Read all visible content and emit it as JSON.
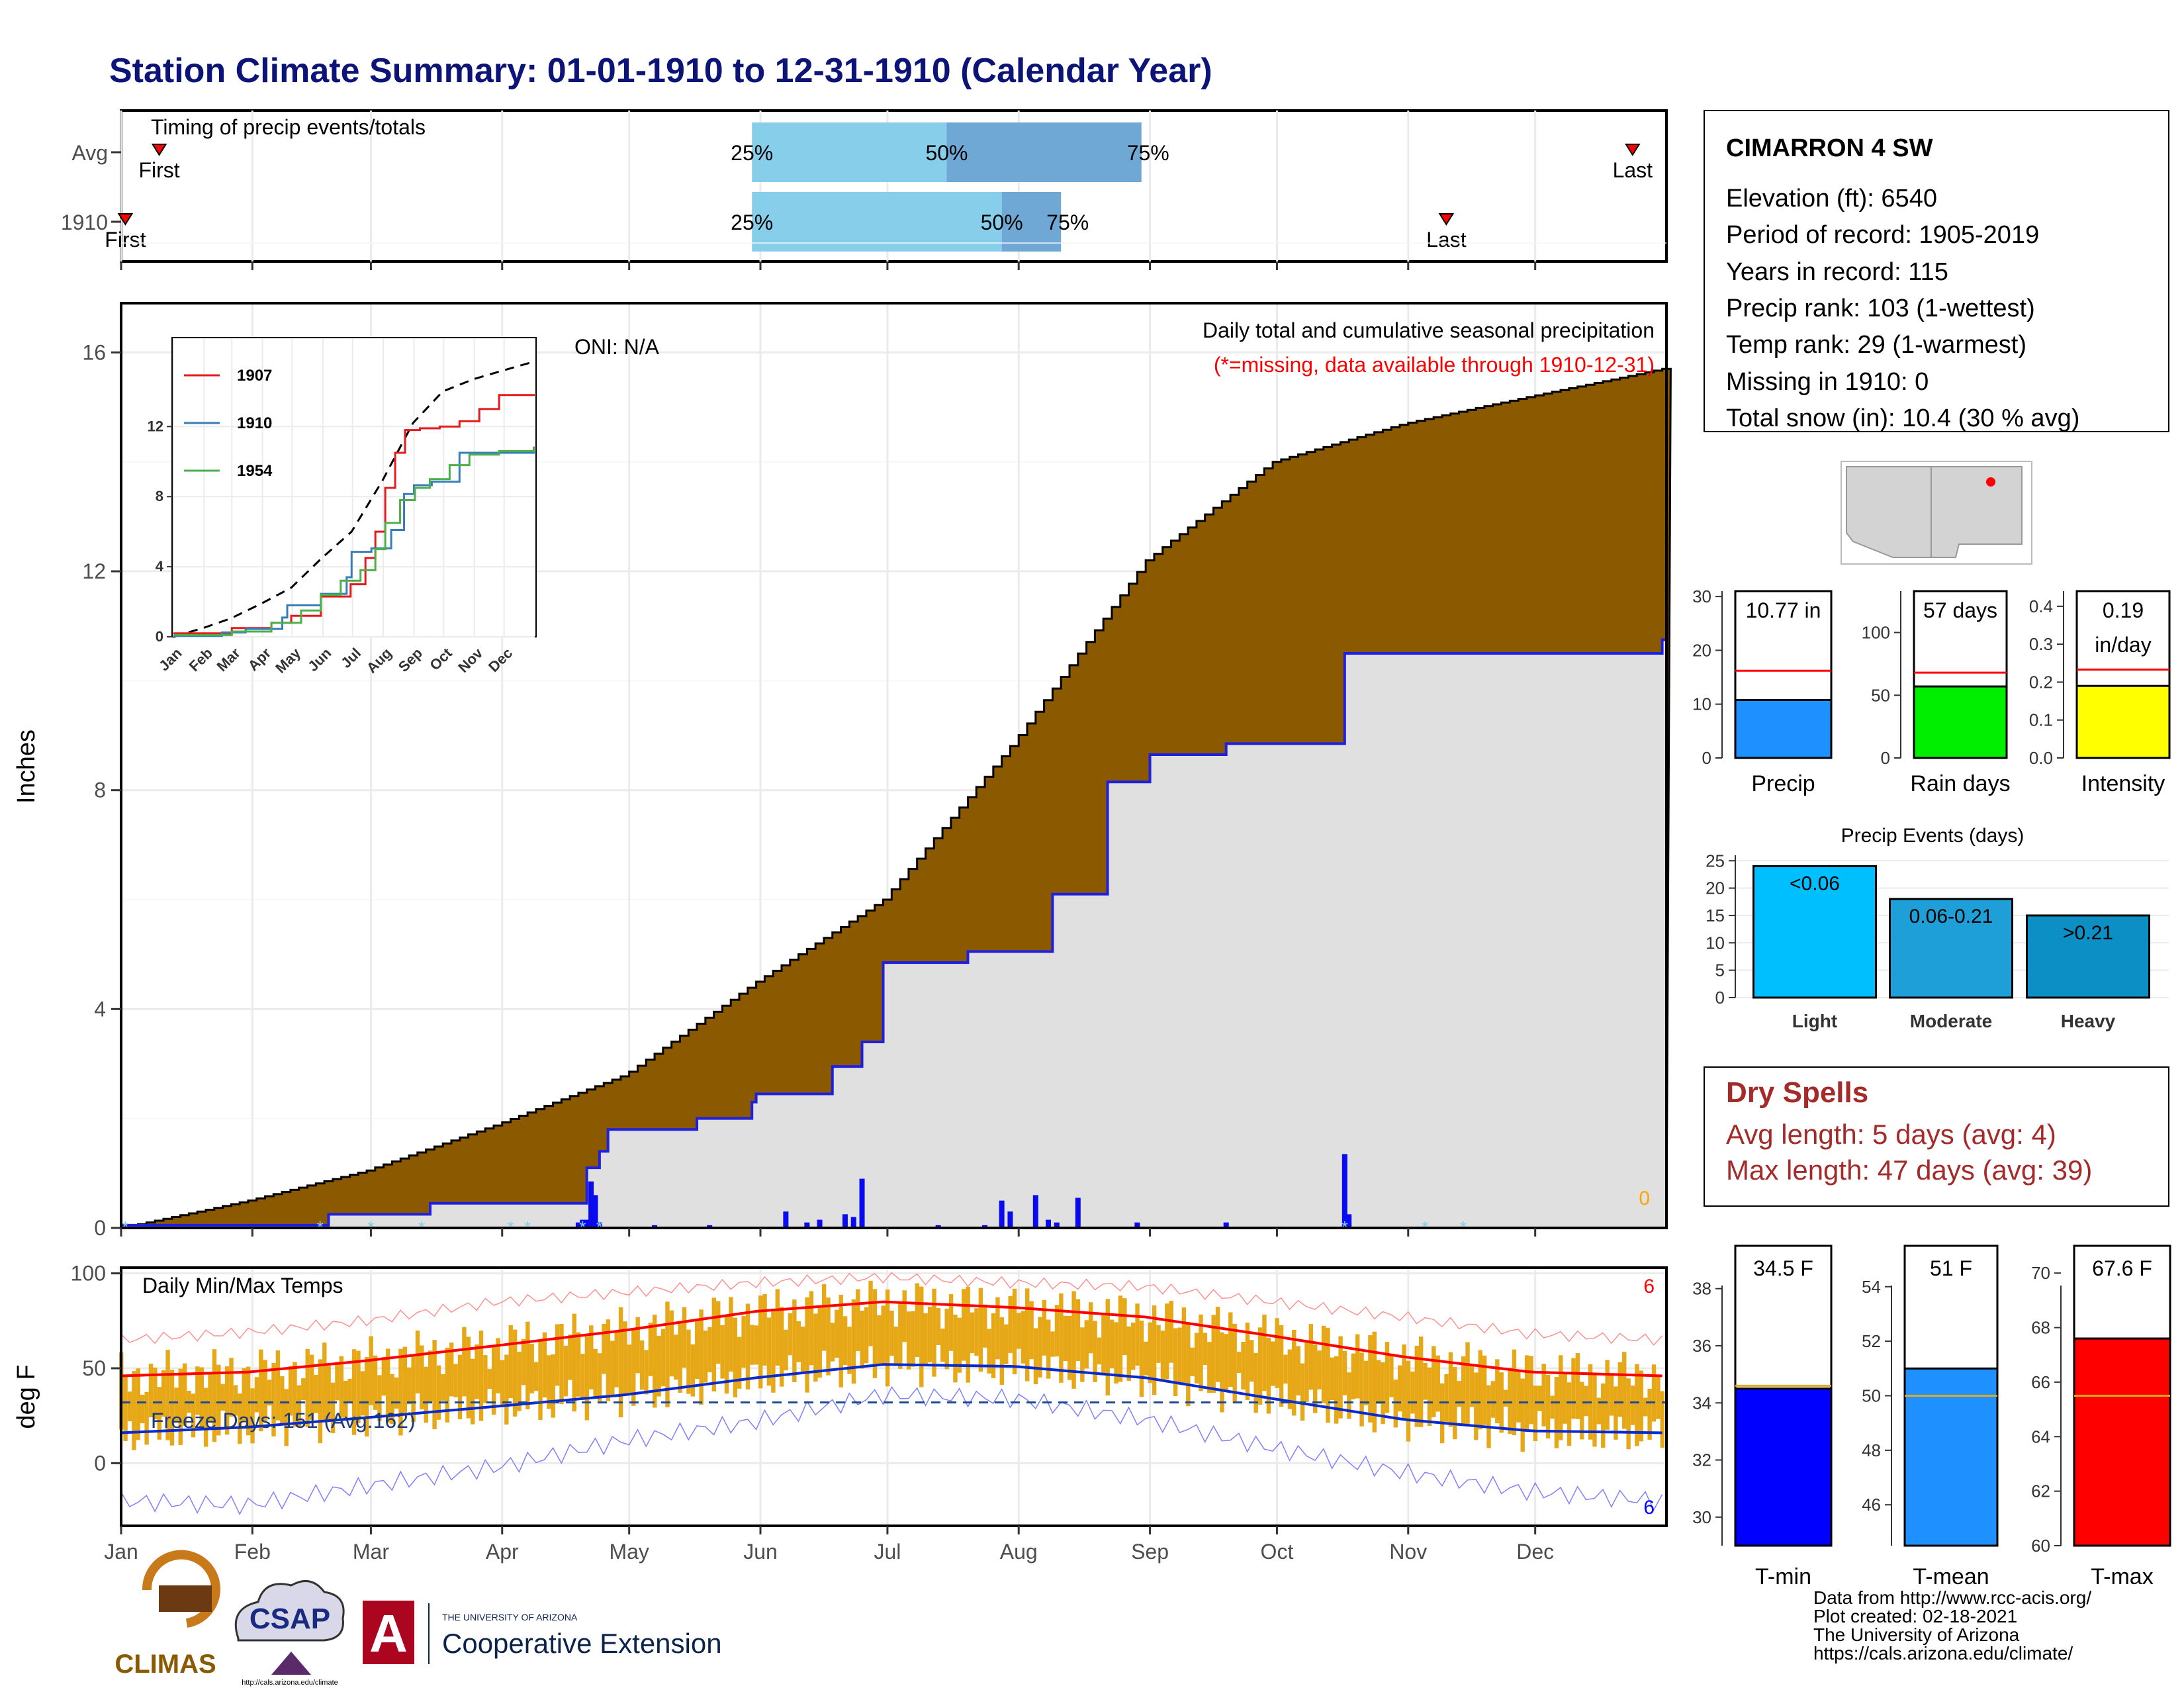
{
  "title": "Station Climate Summary: 01-01-1910 to 12-31-1910 (Calendar Year)",
  "colors": {
    "title": "#0d1478",
    "brown": "#8b5a00",
    "grey_fill": "#e0e0e0",
    "blue_line": "#1f1fe0",
    "bar_blue": "#0a0af0",
    "light_blue": "#87ceeb",
    "mid_blue": "#6fa8d4",
    "orange_bar": "#e6a817",
    "red": "#ff0000",
    "dry_spell_text": "#a52a2a"
  },
  "timing_panel": {
    "title": "Timing of precip events/totals",
    "rows": [
      {
        "label": "Avg",
        "first_doy": 10,
        "last_doy": 358,
        "p25_doy": 150,
        "p50_doy": 196,
        "p75_doy": 242,
        "first_label": "First",
        "last_label": "Last",
        "p25_label": "25%",
        "p50_label": "50%",
        "p75_label": "75%"
      },
      {
        "label": "1910",
        "first_doy": 2,
        "last_doy": 314,
        "p25_doy": 150,
        "p50_doy": 209,
        "p75_doy": 223,
        "first_label": "First",
        "last_label": "Last",
        "p25_label": "25%",
        "p50_label": "50%",
        "p75_label": "75%"
      }
    ]
  },
  "station_box": {
    "name": "CIMARRON 4 SW",
    "lines": [
      "Elevation (ft): 6540",
      "Period of record: 1905-2019",
      "Years in record: 115",
      "Precip rank: 103 (1-wettest)",
      "Temp rank: 29 (1-warmest)",
      "Missing in 1910: 0",
      "Total snow (in): 10.4 (30 % avg)"
    ]
  },
  "precip_panel": {
    "ylabel": "Inches",
    "yticks": [
      0,
      4,
      8,
      12,
      16
    ],
    "ylim": [
      0,
      16.9
    ],
    "label_main": "Daily total and cumulative seasonal precipitation",
    "label_missing": "(*=missing, data available through 1910-12-31)",
    "oni": "ONI: N/A",
    "missing_count": "0"
  },
  "temp_panel": {
    "ylabel": "deg F",
    "title": "Daily Min/Max Temps",
    "yticks": [
      0,
      50,
      100
    ],
    "ylim": [
      -33,
      103
    ],
    "freeze_label": "Freeze Days: 151 (Avg:162)",
    "freeze_line": 32,
    "count_max": "6",
    "count_min": "6"
  },
  "month_labels": [
    "Jan",
    "Feb",
    "Mar",
    "Apr",
    "May",
    "Jun",
    "Jul",
    "Aug",
    "Sep",
    "Oct",
    "Nov",
    "Dec"
  ],
  "chart_data": [
    {
      "type": "area",
      "title": "Daily total and cumulative seasonal precipitation",
      "ylabel": "Inches",
      "ylim": [
        0,
        16.9
      ],
      "x_unit": "day of year (1910)",
      "series": [
        {
          "name": "Average cumulative precipitation",
          "x": [
            1,
            31,
            59,
            90,
            120,
            151,
            181,
            212,
            243,
            273,
            304,
            334,
            365
          ],
          "values": [
            0.0,
            0.5,
            1.05,
            1.9,
            2.8,
            4.5,
            6.0,
            8.9,
            12.2,
            14.0,
            14.7,
            15.2,
            15.7
          ]
        },
        {
          "name": "1910 cumulative precipitation",
          "x": [
            1,
            50,
            74,
            111,
            114,
            116,
            137,
            150,
            151,
            169,
            176,
            181,
            201,
            221,
            234,
            244,
            262,
            289,
            290,
            365
          ],
          "values": [
            0.05,
            0.25,
            0.45,
            1.1,
            1.4,
            1.8,
            2.0,
            2.3,
            2.45,
            2.95,
            3.4,
            4.85,
            5.05,
            6.1,
            8.15,
            8.65,
            8.85,
            8.85,
            10.5,
            10.75
          ]
        }
      ],
      "daily_bars": {
        "doy": [
          109,
          110,
          111,
          112,
          113,
          114,
          127,
          140,
          158,
          163,
          166,
          172,
          174,
          176,
          194,
          205,
          209,
          211,
          217,
          220,
          222,
          227,
          241,
          262,
          290,
          291
        ],
        "values": [
          0.1,
          0.15,
          0.15,
          0.85,
          0.6,
          0.1,
          0.05,
          0.05,
          0.3,
          0.1,
          0.15,
          0.25,
          0.2,
          0.9,
          0.05,
          0.05,
          0.5,
          0.3,
          0.6,
          0.15,
          0.1,
          0.55,
          0.1,
          0.1,
          1.35,
          0.25
        ]
      },
      "snow_days_doy": [
        2,
        48,
        60,
        72,
        93,
        97,
        110,
        114,
        290,
        309,
        318
      ]
    },
    {
      "type": "line",
      "title": "Daily Min/Max Temps",
      "ylabel": "deg F",
      "ylim": [
        -33,
        103
      ],
      "x_unit": "day of year (1910)",
      "series": [
        {
          "name": "Normal max",
          "x": [
            1,
            31,
            59,
            90,
            120,
            151,
            181,
            212,
            243,
            273,
            304,
            334,
            365
          ],
          "values": [
            46,
            48,
            54,
            62,
            70,
            80,
            85,
            82,
            77,
            67,
            56,
            48,
            46
          ]
        },
        {
          "name": "Normal min",
          "x": [
            1,
            31,
            59,
            90,
            120,
            151,
            181,
            212,
            243,
            273,
            304,
            334,
            365
          ],
          "values": [
            16,
            19,
            24,
            30,
            36,
            45,
            52,
            51,
            45,
            34,
            23,
            17,
            16
          ]
        },
        {
          "name": "Record max",
          "x": [
            1,
            31,
            59,
            90,
            120,
            151,
            181,
            212,
            243,
            273,
            304,
            334,
            365
          ],
          "values": [
            65,
            69,
            75,
            85,
            90,
            95,
            98,
            95,
            93,
            85,
            77,
            68,
            65
          ]
        },
        {
          "name": "Record min",
          "x": [
            1,
            31,
            59,
            90,
            120,
            151,
            181,
            212,
            243,
            273,
            304,
            334,
            365
          ],
          "values": [
            -20,
            -22,
            -12,
            -2,
            12,
            22,
            36,
            34,
            23,
            8,
            -5,
            -15,
            -20
          ]
        }
      ],
      "freeze_line": 32
    }
  ],
  "precip_bars": {
    "yticks": [
      0,
      10,
      20,
      30
    ],
    "ylim": [
      0,
      31
    ],
    "value": 10.77,
    "avg": 16.2,
    "label": "10.77 in",
    "xlabel": "Precip"
  },
  "rain_days_bars": {
    "yticks": [
      0,
      50,
      100
    ],
    "ylim": [
      0,
      133
    ],
    "value": 57,
    "avg": 68,
    "label": "57 days",
    "xlabel": "Rain days"
  },
  "intensity_bars": {
    "yticks": [
      "0.0",
      "0.1",
      "0.2",
      "0.3",
      "0.4"
    ],
    "ylim": [
      0,
      0.44
    ],
    "value": 0.19,
    "avg": 0.233,
    "label1": "0.19",
    "label2": "in/day",
    "xlabel": "Intensity"
  },
  "precip_events": {
    "title": "Precip Events (days)",
    "yticks": [
      0,
      5,
      10,
      15,
      20,
      25
    ],
    "ylim": [
      0,
      26
    ],
    "categories": [
      "Light",
      "Moderate",
      "Heavy"
    ],
    "labels": [
      "<0.06",
      "0.06-0.21",
      ">0.21"
    ],
    "values": [
      24,
      18,
      15
    ]
  },
  "dry_spells": {
    "title": "Dry Spells",
    "avg_line": "Avg length: 5 days (avg: 4)",
    "max_line": "Max length: 47 days (avg: 39)"
  },
  "tmin_bar": {
    "yticks": [
      30,
      32,
      34,
      36,
      38
    ],
    "ylim": [
      29,
      39.5
    ],
    "value": 34.5,
    "avg": 34.6,
    "label": "34.5 F",
    "xlabel": "T-min"
  },
  "tmean_bar": {
    "yticks": [
      46,
      48,
      50,
      52,
      54
    ],
    "ylim": [
      44.5,
      55.5
    ],
    "value": 51,
    "avg": 50,
    "label": "51 F",
    "xlabel": "T-mean"
  },
  "tmax_bar": {
    "yticks": [
      60,
      62,
      64,
      66,
      68,
      70
    ],
    "ylim": [
      60,
      71
    ],
    "value": 67.6,
    "avg": 65.5,
    "label": "67.6 F",
    "xlabel": "T-max"
  },
  "inset": {
    "yticks": [
      0,
      4,
      8,
      12
    ],
    "ylim": [
      0,
      17
    ],
    "legend": [
      "1907",
      "1910",
      "1954"
    ],
    "legend_colors": [
      "#e41a1c",
      "#377eb8",
      "#4daf4a"
    ],
    "series": [
      {
        "name": "1907",
        "x": [
          1,
          60,
          100,
          120,
          150,
          180,
          195,
          205,
          215,
          225,
          235,
          250,
          270,
          290,
          310,
          330,
          365
        ],
        "values": [
          0.2,
          0.5,
          0.8,
          1.2,
          2.3,
          3.0,
          4.5,
          6.0,
          8.5,
          10.5,
          11.8,
          11.9,
          12.0,
          12.3,
          13.0,
          13.8,
          13.8
        ]
      },
      {
        "name": "1910",
        "x": [
          1,
          50,
          74,
          111,
          116,
          150,
          176,
          181,
          201,
          221,
          234,
          244,
          262,
          290,
          365
        ],
        "values": [
          0.05,
          0.25,
          0.45,
          1.1,
          1.8,
          2.45,
          3.4,
          4.85,
          5.05,
          6.1,
          8.15,
          8.65,
          8.85,
          10.5,
          10.75
        ]
      },
      {
        "name": "1954",
        "x": [
          1,
          60,
          100,
          130,
          150,
          170,
          190,
          205,
          215,
          230,
          245,
          260,
          280,
          300,
          330,
          365
        ],
        "values": [
          0.1,
          0.3,
          0.8,
          1.5,
          2.4,
          3.2,
          3.8,
          5.0,
          6.5,
          7.8,
          8.5,
          9.0,
          9.8,
          10.4,
          10.6,
          10.8
        ]
      }
    ],
    "avg_series": {
      "x": [
        1,
        31,
        59,
        90,
        120,
        151,
        181,
        212,
        243,
        273,
        304,
        334,
        365
      ],
      "values": [
        0.0,
        0.5,
        1.05,
        1.9,
        2.8,
        4.5,
        6.0,
        8.9,
        12.2,
        14.0,
        14.7,
        15.2,
        15.7
      ]
    }
  },
  "footer": {
    "credits": [
      "Data from http://www.rcc-acis.org/",
      "Plot created: 02-18-2021",
      "The University of Arizona",
      "https://cals.arizona.edu/climate/"
    ],
    "climas": "CLIMAS",
    "csap": "CSAP",
    "csap_url": "http://cals.arizona.edu/climate",
    "ua_line1": "THE UNIVERSITY OF ARIZONA",
    "ua_line2": "Cooperative Extension"
  }
}
